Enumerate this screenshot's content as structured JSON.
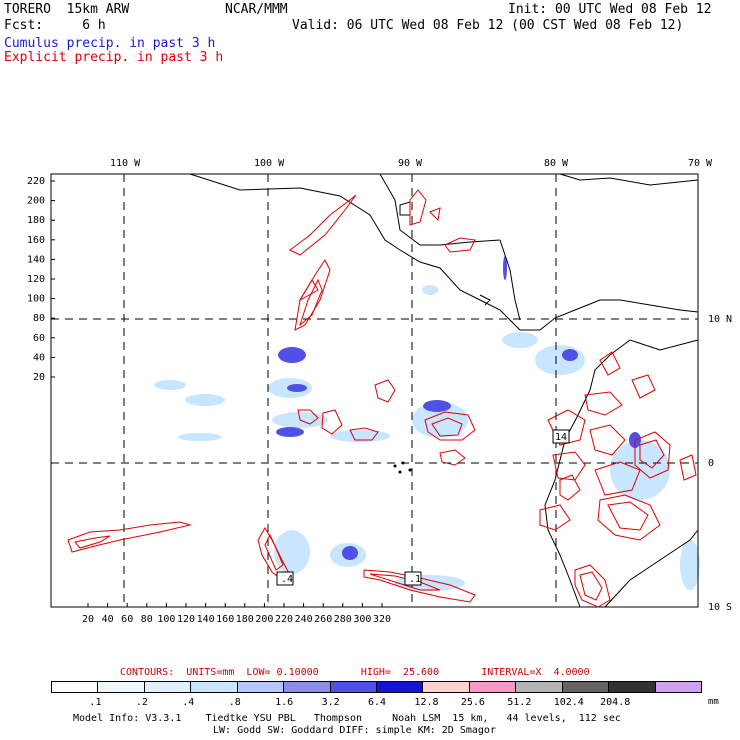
{
  "header": {
    "model": "TORERO  15km ARW",
    "org": "NCAR/MMM",
    "init": "Init: 00 UTC Wed 08 Feb 12",
    "fcst": "Fcst:     6 h",
    "valid": "Valid: 06 UTC Wed 08 Feb 12 (00 CST Wed 08 Feb 12)",
    "line_cumulus": "Cumulus precip. in past 3 h",
    "line_explicit": "Explicit precip. in past 3 h",
    "color_cumulus": "#1a1ad0",
    "color_explicit": "#e00000"
  },
  "map": {
    "lon_labels": [
      "110 W",
      "100 W",
      "90 W",
      "80 W",
      "70 W"
    ],
    "lat_labels": [
      "10 N",
      "0",
      "10 S"
    ],
    "y_ticks": [
      "220",
      "200",
      "180",
      "160",
      "140",
      "120",
      "100",
      "80",
      "60",
      "40",
      "20"
    ],
    "x_ticks": [
      "20",
      "40",
      "60",
      "80",
      "100",
      "120",
      "140",
      "160",
      "180",
      "200",
      "220",
      "240",
      "260",
      "280",
      "300",
      "320"
    ],
    "max_labels": [
      ".4",
      ".1",
      "14"
    ]
  },
  "contours_info": "CONTOURS:  UNITS=mm  LOW= 0.10000       HIGH=  25.600       INTERVAL=X  4.0000",
  "colorbar": {
    "colors": [
      "#ffffff",
      "#f0f8ff",
      "#e0f0ff",
      "#c8e6ff",
      "#b4c8ff",
      "#8c8cf0",
      "#5050e6",
      "#1414d2",
      "#ffd2d2",
      "#ff96c8",
      "#b4b4b4",
      "#646464",
      "#323232",
      "#d2a0f0"
    ],
    "labels": [
      ".1",
      ".2",
      ".4",
      ".8",
      "1.6",
      "3.2",
      "6.4",
      "12.8",
      "25.6",
      "51.2",
      "102.4",
      "204.8"
    ],
    "unit": "mm"
  },
  "footer": {
    "line1": "Model Info: V3.3.1    Tiedtke YSU PBL   Thompson     Noah LSM  15 km,   44 levels,  112 sec",
    "line2": "LW: Godd SW: Goddard DIFF: simple KM: 2D Smagor"
  }
}
